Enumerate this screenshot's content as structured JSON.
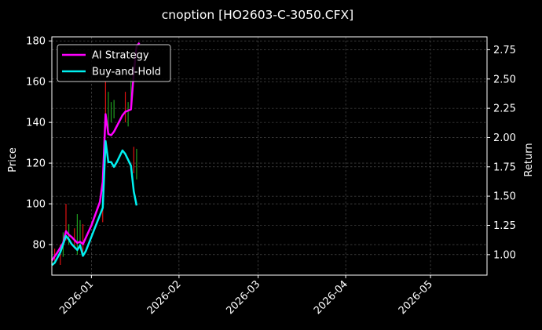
{
  "chart_data": {
    "type": "line",
    "title": "cnoption [HO2603-C-3050.CFX]",
    "ylabel_left": "Price",
    "ylabel_right": "Return",
    "ylim_left": [
      65,
      182
    ],
    "ylim_right": [
      0.825,
      2.86
    ],
    "xlim": [
      "2025-12-18",
      "2026-05-21"
    ],
    "x_ticks": [
      "2026-01",
      "2026-02",
      "2026-03",
      "2026-04",
      "2026-05"
    ],
    "x_tick_dates": [
      "2026-01-01",
      "2026-02-01",
      "2026-03-01",
      "2026-04-01",
      "2026-05-01"
    ],
    "y_ticks_left": [
      80,
      100,
      120,
      140,
      160,
      180
    ],
    "y_ticks_right": [
      "1.00",
      "1.25",
      "1.50",
      "1.75",
      "2.00",
      "2.25",
      "2.50",
      "2.75"
    ],
    "y_tick_values_right": [
      1.0,
      1.25,
      1.5,
      1.75,
      2.0,
      2.25,
      2.5,
      2.75
    ],
    "grid": true,
    "legend_position": "top-left",
    "candles": [
      {
        "date": "2025-12-18",
        "low": 70,
        "high": 77,
        "color": "green"
      },
      {
        "date": "2025-12-19",
        "low": 72,
        "high": 78,
        "color": "red"
      },
      {
        "date": "2025-12-21",
        "low": 70,
        "high": 80,
        "color": "red"
      },
      {
        "date": "2025-12-22",
        "low": 74,
        "high": 86,
        "color": "green"
      },
      {
        "date": "2025-12-23",
        "low": 82,
        "high": 100,
        "color": "red"
      },
      {
        "date": "2025-12-24",
        "low": 80,
        "high": 90,
        "color": "green"
      },
      {
        "date": "2025-12-26",
        "low": 78,
        "high": 88,
        "color": "red"
      },
      {
        "date": "2025-12-27",
        "low": 75,
        "high": 95,
        "color": "green"
      },
      {
        "date": "2025-12-28",
        "low": 78,
        "high": 92,
        "color": "green"
      },
      {
        "date": "2025-12-29",
        "low": 76,
        "high": 90,
        "color": "red"
      },
      {
        "date": "2026-01-05",
        "low": 91,
        "high": 98,
        "color": "red"
      },
      {
        "date": "2026-01-06",
        "low": 138,
        "high": 160,
        "color": "red"
      },
      {
        "date": "2026-01-07",
        "low": 135,
        "high": 155,
        "color": "green"
      },
      {
        "date": "2026-01-08",
        "low": 140,
        "high": 150,
        "color": "green"
      },
      {
        "date": "2026-01-09",
        "low": 142,
        "high": 151,
        "color": "green"
      },
      {
        "date": "2026-01-13",
        "low": 140,
        "high": 155,
        "color": "red"
      },
      {
        "date": "2026-01-14",
        "low": 138,
        "high": 150,
        "color": "green"
      },
      {
        "date": "2026-01-15",
        "low": 148,
        "high": 162,
        "color": "green"
      },
      {
        "date": "2026-01-16",
        "low": 115,
        "high": 128,
        "color": "red"
      },
      {
        "date": "2026-01-17",
        "low": 112,
        "high": 127,
        "color": "green"
      }
    ],
    "series": [
      {
        "name": "AI Strategy",
        "color": "#ff00ff",
        "points": [
          [
            "2025-12-18",
            0.95
          ],
          [
            "2025-12-20",
            1.02
          ],
          [
            "2025-12-22",
            1.1
          ],
          [
            "2025-12-23",
            1.2
          ],
          [
            "2025-12-24",
            1.17
          ],
          [
            "2025-12-25",
            1.15
          ],
          [
            "2025-12-27",
            1.1
          ],
          [
            "2025-12-28",
            1.11
          ],
          [
            "2025-12-29",
            1.09
          ],
          [
            "2026-01-01",
            1.25
          ],
          [
            "2026-01-04",
            1.45
          ],
          [
            "2026-01-05",
            1.62
          ],
          [
            "2026-01-06",
            2.2
          ],
          [
            "2026-01-07",
            2.03
          ],
          [
            "2026-01-08",
            2.02
          ],
          [
            "2026-01-09",
            2.05
          ],
          [
            "2026-01-12",
            2.19
          ],
          [
            "2026-01-13",
            2.22
          ],
          [
            "2026-01-14",
            2.23
          ],
          [
            "2026-01-15",
            2.24
          ],
          [
            "2026-01-16",
            2.55
          ],
          [
            "2026-01-17",
            2.78
          ],
          [
            "2026-01-18",
            2.81
          ]
        ]
      },
      {
        "name": "Buy-and-Hold",
        "color": "#00f0f0",
        "points": [
          [
            "2025-12-18",
            0.91
          ],
          [
            "2025-12-19",
            0.93
          ],
          [
            "2025-12-21",
            1.02
          ],
          [
            "2025-12-23",
            1.16
          ],
          [
            "2025-12-24",
            1.13
          ],
          [
            "2025-12-25",
            1.09
          ],
          [
            "2025-12-27",
            1.04
          ],
          [
            "2025-12-28",
            1.08
          ],
          [
            "2025-12-29",
            0.99
          ],
          [
            "2025-12-30",
            1.03
          ],
          [
            "2026-01-05",
            1.4
          ],
          [
            "2026-01-06",
            1.97
          ],
          [
            "2026-01-07",
            1.79
          ],
          [
            "2026-01-08",
            1.79
          ],
          [
            "2026-01-09",
            1.75
          ],
          [
            "2026-01-10",
            1.79
          ],
          [
            "2026-01-12",
            1.89
          ],
          [
            "2026-01-13",
            1.86
          ],
          [
            "2026-01-15",
            1.76
          ],
          [
            "2026-01-16",
            1.54
          ],
          [
            "2026-01-17",
            1.42
          ]
        ]
      }
    ]
  }
}
